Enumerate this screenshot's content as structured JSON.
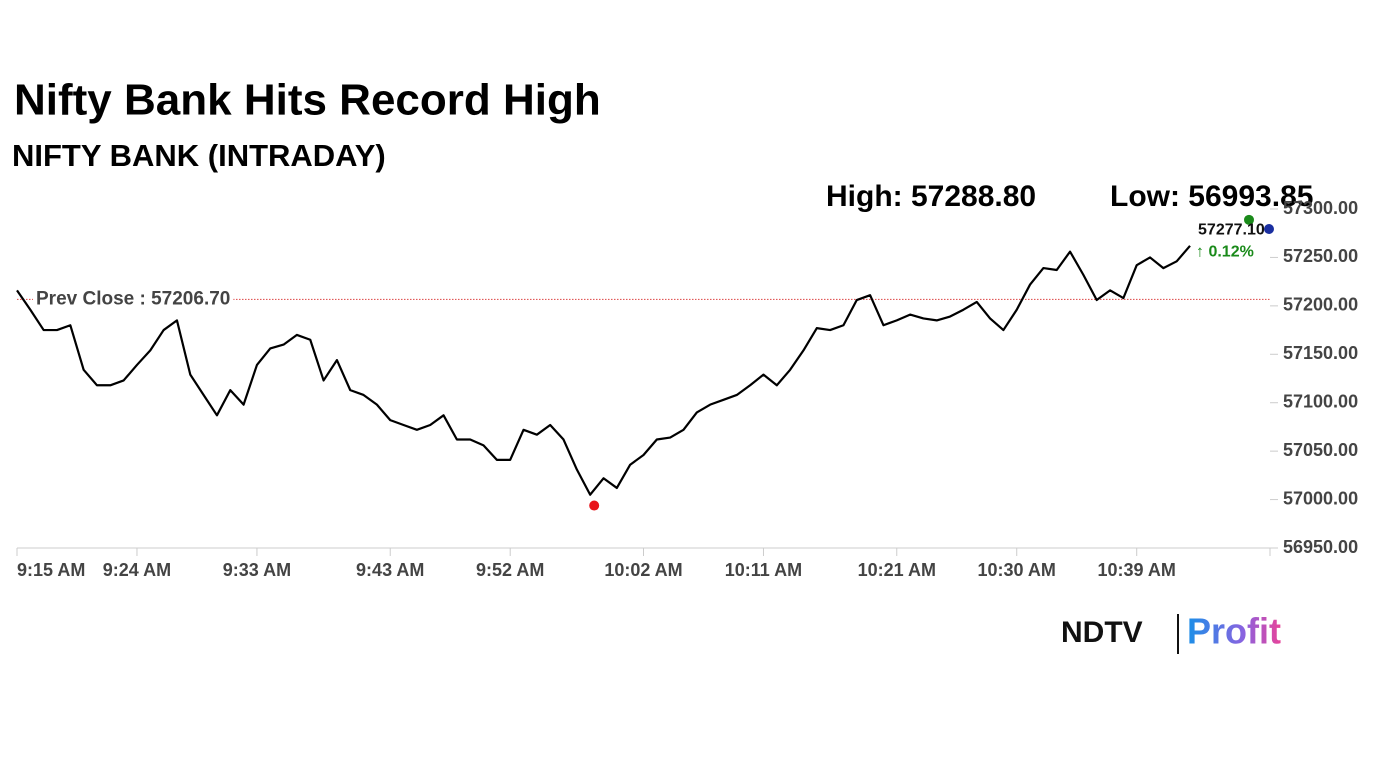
{
  "chart_data": {
    "type": "line",
    "title": "Nifty Bank Hits Record High",
    "subtitle": "NIFTY BANK (INTRADAY)",
    "high": {
      "value": 57288.8,
      "label": "High: 57288.80"
    },
    "low": {
      "value": 56993.85,
      "label": "Low: 56993.85"
    },
    "prev_close": {
      "value": 57206.7,
      "label": "Prev Close : 57206.70"
    },
    "last": {
      "value": 57277.1,
      "label": "57277.10",
      "change": "↑ 0.12%"
    },
    "color": "#000000",
    "x": [
      "9:15 AM",
      "9:16 AM",
      "9:17 AM",
      "9:18 AM",
      "9:19 AM",
      "9:20 AM",
      "9:21 AM",
      "9:22 AM",
      "9:23 AM",
      "9:24 AM",
      "9:25 AM",
      "9:26 AM",
      "9:27 AM",
      "9:28 AM",
      "9:29 AM",
      "9:30 AM",
      "9:31 AM",
      "9:32 AM",
      "9:33 AM",
      "9:34 AM",
      "9:35 AM",
      "9:36 AM",
      "9:37 AM",
      "9:38 AM",
      "9:39 AM",
      "9:40 AM",
      "9:41 AM",
      "9:42 AM",
      "9:43 AM",
      "9:44 AM",
      "9:45 AM",
      "9:46 AM",
      "9:47 AM",
      "9:48 AM",
      "9:49 AM",
      "9:50 AM",
      "9:51 AM",
      "9:52 AM",
      "9:53 AM",
      "9:54 AM",
      "9:55 AM",
      "9:56 AM",
      "9:57 AM",
      "9:58 AM",
      "9:59 AM",
      "10:00 AM",
      "10:01 AM",
      "10:02 AM",
      "10:03 AM",
      "10:04 AM",
      "10:05 AM",
      "10:06 AM",
      "10:07 AM",
      "10:08 AM",
      "10:09 AM",
      "10:10 AM",
      "10:11 AM",
      "10:12 AM",
      "10:13 AM",
      "10:14 AM",
      "10:15 AM",
      "10:16 AM",
      "10:17 AM",
      "10:18 AM",
      "10:19 AM",
      "10:20 AM",
      "10:21 AM",
      "10:22 AM",
      "10:23 AM",
      "10:24 AM",
      "10:25 AM",
      "10:26 AM",
      "10:27 AM",
      "10:28 AM",
      "10:29 AM",
      "10:30 AM",
      "10:31 AM",
      "10:32 AM",
      "10:33 AM",
      "10:34 AM",
      "10:35 AM",
      "10:36 AM",
      "10:37 AM",
      "10:38 AM",
      "10:39 AM",
      "10:40 AM",
      "10:41 AM",
      "10:42 AM",
      "10:43 AM"
    ],
    "values": [
      57216,
      57196,
      57175,
      57175,
      57180,
      57134,
      57118,
      57118,
      57123,
      57139,
      57154,
      57175,
      57185,
      57129,
      57108,
      57087,
      57113,
      57098,
      57139,
      57156,
      57160,
      57170,
      57165,
      57123,
      57144,
      57113,
      57108,
      57098,
      57082,
      57077,
      57072,
      57077,
      57087,
      57062,
      57062,
      57056,
      57041,
      57041,
      57072,
      57067,
      57077,
      57062,
      57031,
      57005,
      57022,
      57012,
      57036,
      57046,
      57062,
      57064,
      57072,
      57090,
      57098,
      57103,
      57108,
      57118,
      57129,
      57118,
      57134,
      57154,
      57177,
      57175,
      57180,
      57206,
      57211,
      57180,
      57185,
      57191,
      57187,
      57185,
      57189,
      57196,
      57204,
      57187,
      57175,
      57196,
      57222,
      57239,
      57237,
      57256,
      57232,
      57206,
      57216,
      57208,
      57242,
      57250,
      57239,
      57246,
      57262
    ],
    "xlim": [
      "9:15 AM",
      "10:49 AM"
    ],
    "xticks": [
      "9:15 AM",
      "9:24 AM",
      "9:33 AM",
      "9:43 AM",
      "9:52 AM",
      "10:02 AM",
      "10:11 AM",
      "10:21 AM",
      "10:30 AM",
      "10:39 AM"
    ],
    "ylim": [
      56950,
      57300
    ],
    "yticks": [
      {
        "value": 56950,
        "label": "56950.00"
      },
      {
        "value": 57000,
        "label": "57000.00"
      },
      {
        "value": 57050,
        "label": "57050.00"
      },
      {
        "value": 57100,
        "label": "57100.00"
      },
      {
        "value": 57150,
        "label": "57150.00"
      },
      {
        "value": 57200,
        "label": "57200.00"
      },
      {
        "value": 57250,
        "label": "57250.00"
      },
      {
        "value": 57300,
        "label": "57300.00"
      }
    ],
    "brand": [
      "NDTV",
      "Profit"
    ]
  }
}
